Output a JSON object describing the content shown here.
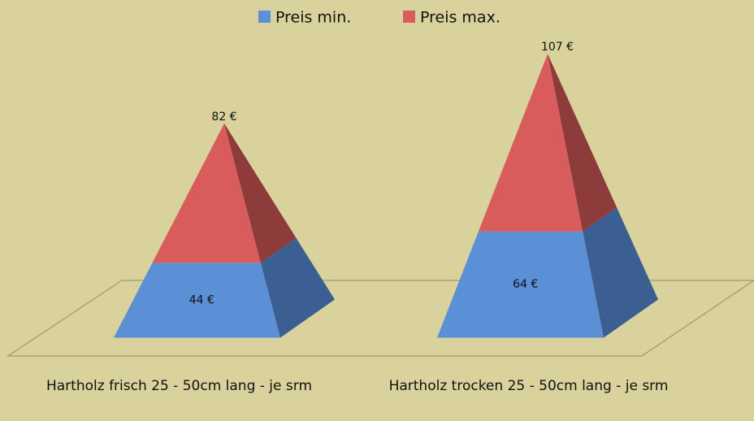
{
  "chart_data": {
    "type": "pyramid-stacked",
    "categories": [
      "Hartholz frisch  25 - 50cm lang - je srm",
      "Hartholz trocken 25 - 50cm lang - je srm"
    ],
    "series": [
      {
        "name": "Preis min.",
        "color": "#5b8fd6",
        "side_color": "#3b5f92",
        "values": [
          44,
          64
        ],
        "value_labels": [
          "44 €",
          "64 €"
        ]
      },
      {
        "name": "Preis max.",
        "color": "#d95c5c",
        "side_color": "#8e3b3b",
        "values": [
          82,
          107
        ],
        "value_labels": [
          "82 €",
          "107 €"
        ]
      }
    ],
    "ylim": [
      0,
      180
    ],
    "legend": "top"
  }
}
